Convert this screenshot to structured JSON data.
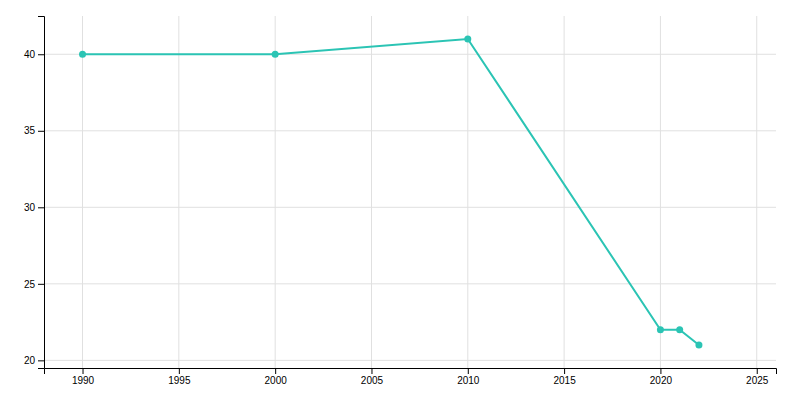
{
  "chart_data": {
    "type": "line",
    "x": [
      1990,
      2000,
      2010,
      2020,
      2021,
      2022
    ],
    "values": [
      40,
      40,
      41,
      22,
      22,
      21
    ],
    "color": "#2BC4B4",
    "marker": "circle",
    "xlim": [
      1988,
      2026
    ],
    "ylim": [
      19.5,
      42.5
    ],
    "xticks": [
      1990,
      1995,
      2000,
      2005,
      2010,
      2015,
      2020,
      2025
    ],
    "yticks": [
      20,
      25,
      30,
      35,
      40
    ],
    "grid": true
  }
}
